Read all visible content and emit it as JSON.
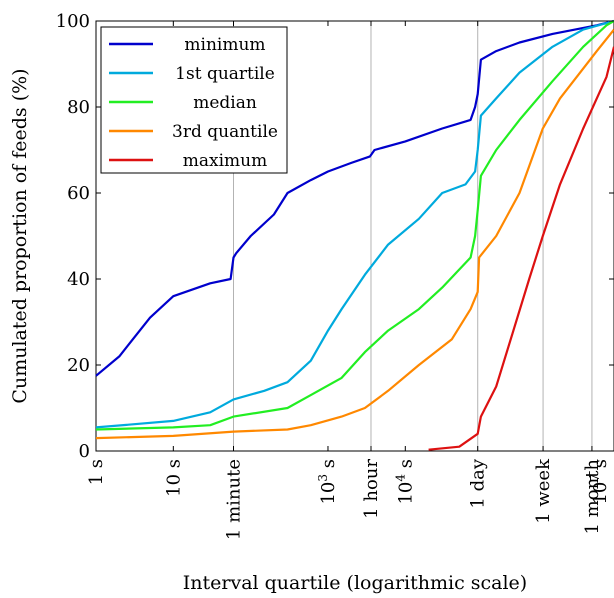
{
  "chart_data": {
    "type": "line",
    "xlabel": "Interval quartile (logarithmic scale)",
    "ylabel": "Cumulated proportion of feeds (%)",
    "xscale": "log",
    "xunit": "seconds",
    "xlim": [
      1,
      5000000
    ],
    "ylim": [
      0,
      100
    ],
    "grid": "vertical lines at 1 minute, 1 hour, 1 day, 1 week, 1 month",
    "legend_position": "top-left",
    "x_ticks": [
      {
        "x": 1,
        "label": "1 s"
      },
      {
        "x": 10,
        "label": "10 s"
      },
      {
        "x": 60,
        "label": "1 minute"
      },
      {
        "x": 1000,
        "label": "10",
        "sup": "3",
        "suffix": " s"
      },
      {
        "x": 3600,
        "label": "1 hour"
      },
      {
        "x": 10000,
        "label": "10",
        "sup": "4",
        "suffix": " s"
      },
      {
        "x": 86400,
        "label": "1 day"
      },
      {
        "x": 604800,
        "label": "1 week"
      },
      {
        "x": 2592000,
        "label": "1 month"
      },
      {
        "x": 10000000,
        "label": "10",
        "sup": "7",
        "suffix": " s"
      }
    ],
    "y_ticks": [
      0,
      20,
      40,
      60,
      80,
      100
    ],
    "series": [
      {
        "name": "minimum",
        "color": "#0000cc",
        "points": [
          [
            1,
            17.5
          ],
          [
            2,
            22
          ],
          [
            3,
            26
          ],
          [
            5,
            31
          ],
          [
            10,
            36
          ],
          [
            30,
            39
          ],
          [
            55,
            40
          ],
          [
            60,
            45
          ],
          [
            65,
            46
          ],
          [
            100,
            50
          ],
          [
            200,
            55
          ],
          [
            300,
            60
          ],
          [
            600,
            63
          ],
          [
            1000,
            65
          ],
          [
            2000,
            67
          ],
          [
            3500,
            68.5
          ],
          [
            4000,
            70
          ],
          [
            10000,
            72
          ],
          [
            30000,
            75
          ],
          [
            70000,
            77
          ],
          [
            80000,
            80
          ],
          [
            86400,
            83
          ],
          [
            95000,
            91
          ],
          [
            150000,
            93
          ],
          [
            300000,
            95
          ],
          [
            800000,
            97
          ],
          [
            3000000,
            99
          ],
          [
            5000000,
            100
          ]
        ]
      },
      {
        "name": "1st quartile",
        "color": "#00aadd",
        "points": [
          [
            1,
            5.5
          ],
          [
            10,
            7
          ],
          [
            30,
            9
          ],
          [
            60,
            12
          ],
          [
            150,
            14
          ],
          [
            300,
            16
          ],
          [
            600,
            21
          ],
          [
            1000,
            28
          ],
          [
            1500,
            33
          ],
          [
            3000,
            41
          ],
          [
            6000,
            48
          ],
          [
            15000,
            54
          ],
          [
            30000,
            60
          ],
          [
            60000,
            62
          ],
          [
            80000,
            65
          ],
          [
            86400,
            70
          ],
          [
            95000,
            78
          ],
          [
            150000,
            82
          ],
          [
            300000,
            88
          ],
          [
            800000,
            94
          ],
          [
            2000000,
            98
          ],
          [
            5000000,
            100
          ]
        ]
      },
      {
        "name": "median",
        "color": "#22ee22",
        "points": [
          [
            1,
            5
          ],
          [
            10,
            5.5
          ],
          [
            30,
            6
          ],
          [
            60,
            8
          ],
          [
            300,
            10
          ],
          [
            600,
            13
          ],
          [
            1500,
            17
          ],
          [
            3000,
            23
          ],
          [
            6000,
            28
          ],
          [
            15000,
            33
          ],
          [
            30000,
            38
          ],
          [
            70000,
            45
          ],
          [
            80000,
            50
          ],
          [
            86400,
            56
          ],
          [
            95000,
            64
          ],
          [
            150000,
            70
          ],
          [
            300000,
            77
          ],
          [
            800000,
            86
          ],
          [
            2000000,
            94
          ],
          [
            4000000,
            99
          ],
          [
            5000000,
            100
          ]
        ]
      },
      {
        "name": "3rd quantile",
        "color": "#ff8800",
        "points": [
          [
            1,
            3
          ],
          [
            10,
            3.5
          ],
          [
            60,
            4.5
          ],
          [
            300,
            5
          ],
          [
            600,
            6
          ],
          [
            1500,
            8
          ],
          [
            3000,
            10
          ],
          [
            6000,
            14
          ],
          [
            15000,
            20
          ],
          [
            40000,
            26
          ],
          [
            70000,
            33
          ],
          [
            86400,
            37
          ],
          [
            90000,
            45
          ],
          [
            150000,
            50
          ],
          [
            300000,
            60
          ],
          [
            600000,
            75
          ],
          [
            1000000,
            82
          ],
          [
            3000000,
            93
          ],
          [
            5000000,
            98
          ]
        ]
      },
      {
        "name": "maximum",
        "color": "#dd1111",
        "points": [
          [
            20000,
            0.3
          ],
          [
            50000,
            1
          ],
          [
            86400,
            4
          ],
          [
            95000,
            8
          ],
          [
            150000,
            15
          ],
          [
            250000,
            28
          ],
          [
            400000,
            40
          ],
          [
            600000,
            50
          ],
          [
            1000000,
            62
          ],
          [
            2000000,
            75
          ],
          [
            4000000,
            87
          ],
          [
            5000000,
            94
          ]
        ]
      }
    ]
  }
}
